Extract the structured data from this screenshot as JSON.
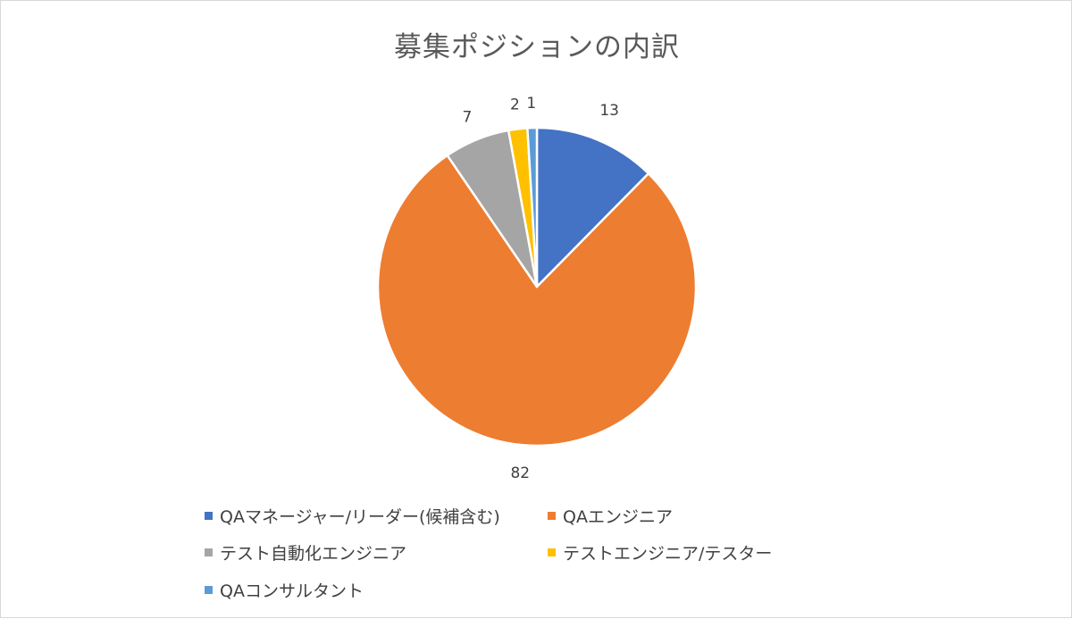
{
  "chart_data": {
    "type": "pie",
    "title": "募集ポジションの内訳",
    "categories": [
      "QAマネージャー/リーダー(候補含む)",
      "QAエンジニア",
      "テスト自動化エンジニア",
      "テストエンジニア/テスター",
      "QAコンサルタント"
    ],
    "values": [
      13,
      82,
      7,
      2,
      1
    ],
    "colors": [
      "#4472c4",
      "#ed7d31",
      "#a5a5a5",
      "#ffc000",
      "#5b9bd5"
    ],
    "legend_position": "bottom",
    "data_labels": [
      "13",
      "82",
      "7",
      "2",
      "1"
    ]
  }
}
